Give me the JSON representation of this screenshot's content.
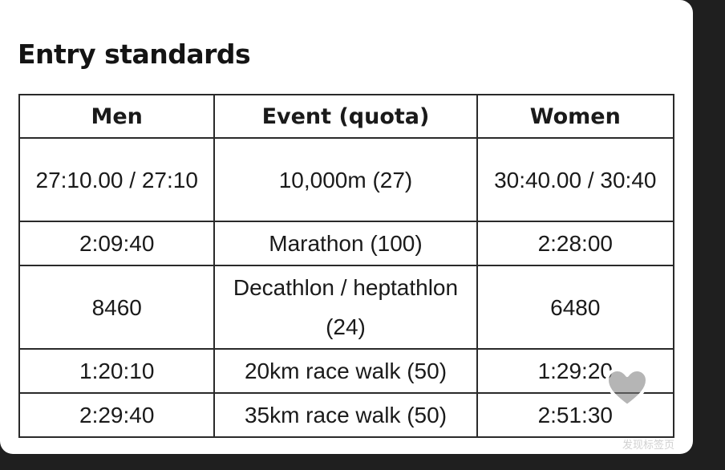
{
  "title": "Entry standards",
  "table": {
    "headers": [
      "Men",
      "Event (quota)",
      "Women"
    ],
    "rows": [
      {
        "men": "27:10.00 / 27:10",
        "event": "10,000m (27)",
        "women": "30:40.00 / 30:40"
      },
      {
        "men": "2:09:40",
        "event": "Marathon (100)",
        "women": "2:28:00"
      },
      {
        "men": "8460",
        "event": "Decathlon / heptathlon (24)",
        "women": "6480"
      },
      {
        "men": "1:20:10",
        "event": "20km race walk (50)",
        "women": "1:29:20"
      },
      {
        "men": "2:29:40",
        "event": "35km race walk (50)",
        "women": "2:51:30"
      }
    ]
  },
  "overlay": {
    "heart_icon": "heart-icon",
    "watermark": "发现标签页"
  },
  "colors": {
    "background": "#1f1f1f",
    "card": "#ffffff",
    "border": "#2a2a2a",
    "text": "#1a1a1a"
  }
}
